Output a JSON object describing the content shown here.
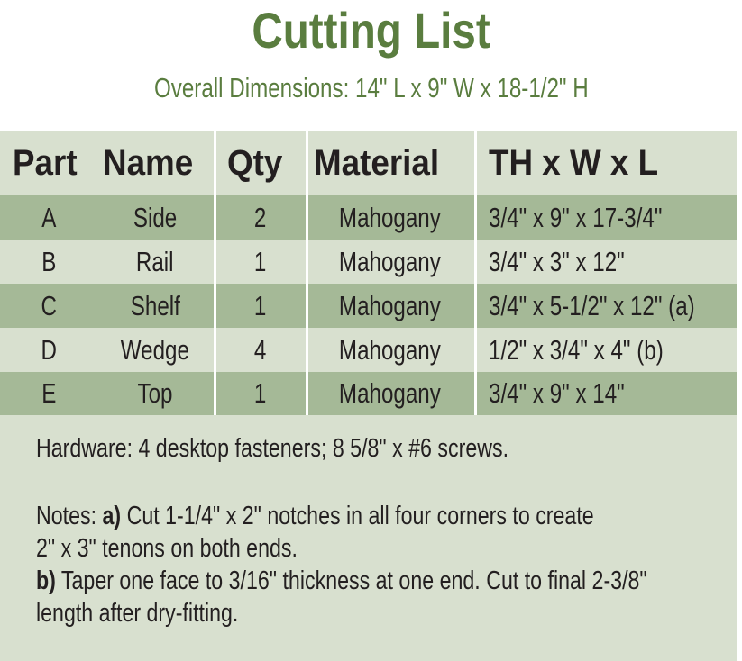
{
  "title": "Cutting List",
  "subtitle": "Overall Dimensions: 14\" L x 9\" W x 18-1/2\" H",
  "colors": {
    "title_green": "#5a7d3f",
    "panel_light": "#d8e0cf",
    "row_dark": "#a5b997"
  },
  "table": {
    "headers": {
      "part": "Part",
      "name": "Name",
      "qty": "Qty",
      "material": "Material",
      "dims": "TH x W x L"
    },
    "rows": [
      {
        "part": "A",
        "name": "Side",
        "qty": "2",
        "material": "Mahogany",
        "dims": "3/4\" x 9\" x 17-3/4\""
      },
      {
        "part": "B",
        "name": "Rail",
        "qty": "1",
        "material": "Mahogany",
        "dims": "3/4\" x 3\" x 12\""
      },
      {
        "part": "C",
        "name": "Shelf",
        "qty": "1",
        "material": "Mahogany",
        "dims": "3/4\" x 5-1/2\" x 12\" (a)"
      },
      {
        "part": "D",
        "name": "Wedge",
        "qty": "4",
        "material": "Mahogany",
        "dims": "1/2\" x 3/4\" x 4\" (b)"
      },
      {
        "part": "E",
        "name": "Top",
        "qty": "1",
        "material": "Mahogany",
        "dims": "3/4\" x 9\" x 14\""
      }
    ]
  },
  "notes": {
    "hardware": "Hardware: 4 desktop fasteners; 8 5/8\" x #6 screws.",
    "notes_label": "Notes: ",
    "a_label": "a)",
    "a_line1": " Cut 1-1/4\" x 2\" notches in all four corners to create",
    "a_line2": "2\" x 3\" tenons on both ends.",
    "b_label": "b)",
    "b_line1": " Taper one face to 3/16\" thickness at one end. Cut to final 2-3/8\"",
    "b_line2": "length after dry-fitting."
  }
}
